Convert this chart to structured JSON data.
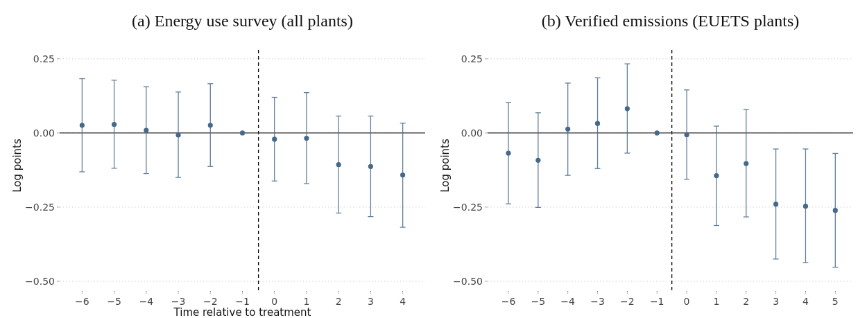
{
  "chart_data": [
    {
      "type": "scatter",
      "title": "(a) Energy use survey (all plants)",
      "xlabel": "Time relative to treatment",
      "ylabel": "Log points",
      "x": [
        -6,
        -5,
        -4,
        -3,
        -2,
        -1,
        0,
        1,
        2,
        3,
        4
      ],
      "series": [
        {
          "color": "#46698a",
          "values": [
            0.026,
            0.029,
            0.009,
            -0.007,
            0.026,
            0,
            -0.021,
            -0.018,
            -0.107,
            -0.113,
            -0.142
          ],
          "errors": [
            [
              -0.131,
              0.183
            ],
            [
              -0.119,
              0.178
            ],
            [
              -0.137,
              0.156
            ],
            [
              -0.15,
              0.138
            ],
            [
              -0.113,
              0.166
            ],
            null,
            [
              -0.162,
              0.12
            ],
            [
              -0.171,
              0.136
            ],
            [
              -0.27,
              0.057
            ],
            [
              -0.282,
              0.057
            ],
            [
              -0.318,
              0.033
            ]
          ]
        }
      ],
      "xlim": [
        -6.7,
        4.7
      ],
      "xticks": [
        {
          "value": -6,
          "label": "−6"
        },
        {
          "value": -5,
          "label": "−5"
        },
        {
          "value": -4,
          "label": "−4"
        },
        {
          "value": -3,
          "label": "−3"
        },
        {
          "value": -2,
          "label": "−2"
        },
        {
          "value": -1,
          "label": "−1"
        },
        0,
        1,
        2,
        3,
        4
      ],
      "ylim": [
        -0.5,
        0.28
      ],
      "yticks": [
        {
          "value": 0.25,
          "label": "0.25"
        },
        {
          "value": 0,
          "label": "0.00"
        },
        {
          "value": -0.25,
          "label": "−0.25"
        },
        {
          "value": -0.5,
          "label": "−0.50"
        }
      ],
      "grid": "y",
      "marker": "circle",
      "ref_lines": [
        {
          "axis": "x",
          "value": -0.5,
          "color": "#000000",
          "line_style": "dashed"
        },
        {
          "axis": "y",
          "value": 0,
          "color": "#333333",
          "line_style": "solid"
        }
      ]
    },
    {
      "type": "scatter",
      "title": "(b) Verified emissions (EUETS plants)",
      "ylabel": "Log points",
      "x": [
        -6,
        -5,
        -4,
        -3,
        -2,
        -1,
        0,
        1,
        2,
        3,
        4,
        5
      ],
      "series": [
        {
          "color": "#46698a",
          "values": [
            -0.068,
            -0.092,
            0.013,
            0.032,
            0.082,
            0,
            -0.006,
            -0.144,
            -0.103,
            -0.24,
            -0.247,
            -0.261
          ],
          "errors": [
            [
              -0.239,
              0.103
            ],
            [
              -0.251,
              0.068
            ],
            [
              -0.143,
              0.168
            ],
            [
              -0.12,
              0.186
            ],
            [
              -0.068,
              0.233
            ],
            null,
            [
              -0.156,
              0.145
            ],
            [
              -0.312,
              0.023
            ],
            [
              -0.283,
              0.079
            ],
            [
              -0.425,
              -0.054
            ],
            [
              -0.437,
              -0.054
            ],
            [
              -0.453,
              -0.069
            ]
          ]
        }
      ],
      "xlim": [
        -6.7,
        5.6
      ],
      "xticks": [
        {
          "value": -6,
          "label": "−6"
        },
        {
          "value": -5,
          "label": "−5"
        },
        {
          "value": -4,
          "label": "−4"
        },
        {
          "value": -3,
          "label": "−3"
        },
        {
          "value": -2,
          "label": "−2"
        },
        {
          "value": -1,
          "label": "−1"
        },
        0,
        1,
        2,
        3,
        4,
        5
      ],
      "ylim": [
        -0.5,
        0.28
      ],
      "yticks": [
        {
          "value": 0.25,
          "label": "0.25"
        },
        {
          "value": 0,
          "label": "0.00"
        },
        {
          "value": -0.25,
          "label": "−0.25"
        },
        {
          "value": -0.5,
          "label": "−0.50"
        }
      ],
      "grid": "y",
      "marker": "circle",
      "ref_lines": [
        {
          "axis": "x",
          "value": -0.5,
          "color": "#000000",
          "line_style": "dashed"
        },
        {
          "axis": "y",
          "value": 0,
          "color": "#333333",
          "line_style": "solid"
        }
      ]
    }
  ]
}
